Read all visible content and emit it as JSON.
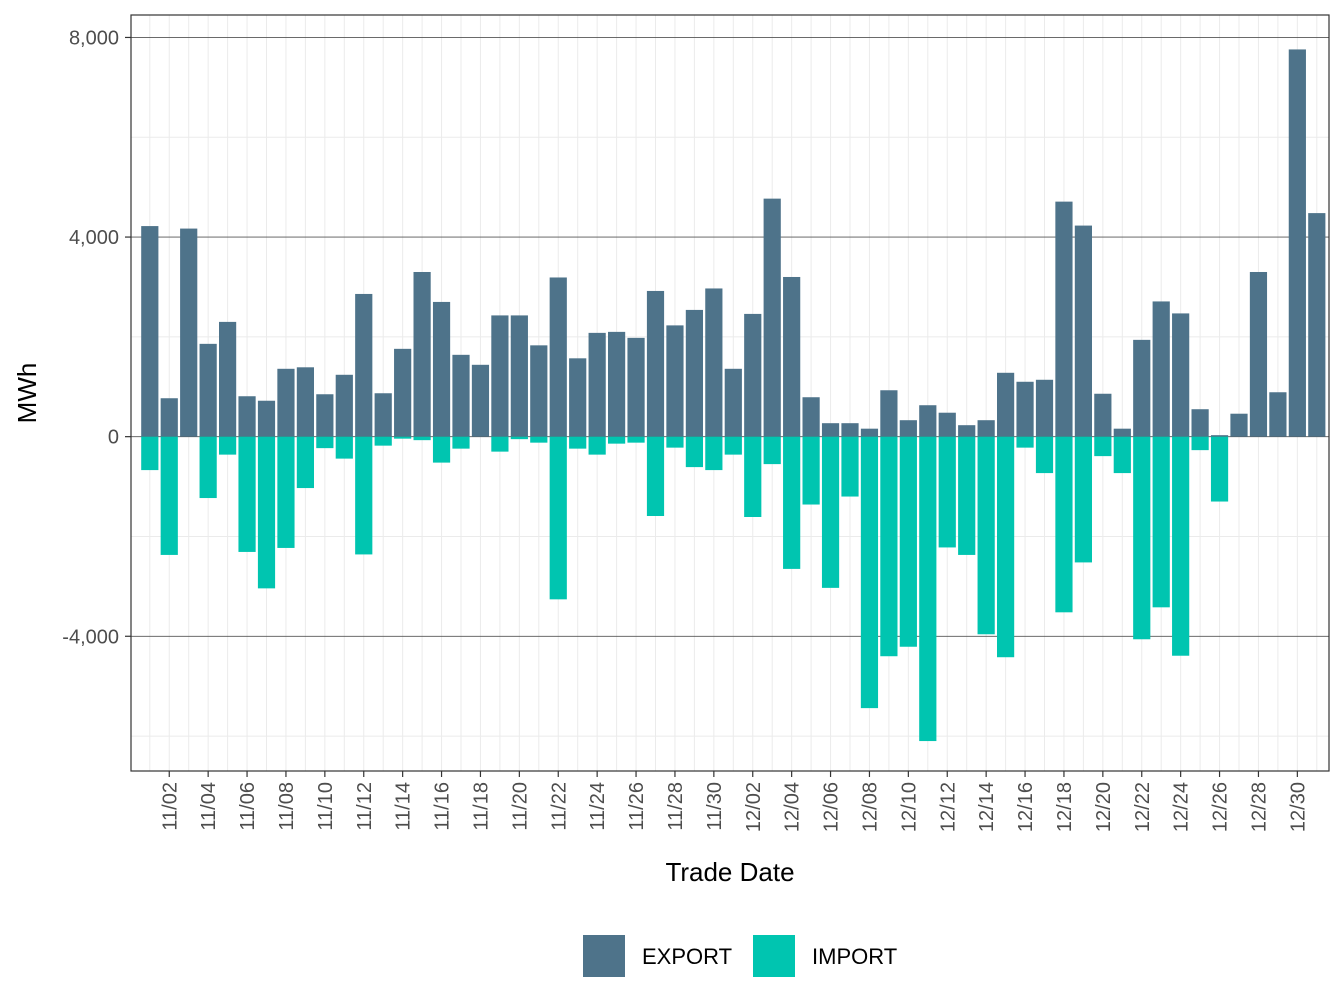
{
  "chart_data": {
    "type": "bar",
    "title": "",
    "xlabel": "Trade Date",
    "ylabel": "MWh",
    "ylim": [
      -6700,
      8450
    ],
    "y_ticks": [
      -4000,
      0,
      4000,
      8000
    ],
    "y_tick_labels": [
      "-4,000",
      "0",
      "4,000",
      "8,000"
    ],
    "grid": true,
    "legend_position": "bottom",
    "x_tick_labels": [
      "11/02",
      "11/04",
      "11/06",
      "11/08",
      "11/10",
      "11/12",
      "11/14",
      "11/16",
      "11/18",
      "11/20",
      "11/22",
      "11/24",
      "11/26",
      "11/28",
      "11/30",
      "12/02",
      "12/04",
      "12/06",
      "12/08",
      "12/10",
      "12/12",
      "12/14",
      "12/16",
      "12/18",
      "12/20",
      "12/22",
      "12/24",
      "12/26",
      "12/28",
      "12/30"
    ],
    "categories": [
      "11/01",
      "11/02",
      "11/03",
      "11/04",
      "11/05",
      "11/06",
      "11/07",
      "11/08",
      "11/09",
      "11/10",
      "11/11",
      "11/12",
      "11/13",
      "11/14",
      "11/15",
      "11/16",
      "11/17",
      "11/18",
      "11/19",
      "11/20",
      "11/21",
      "11/22",
      "11/23",
      "11/24",
      "11/25",
      "11/26",
      "11/27",
      "11/28",
      "11/29",
      "11/30",
      "12/01",
      "12/02",
      "12/03",
      "12/04",
      "12/05",
      "12/06",
      "12/07",
      "12/08",
      "12/09",
      "12/10",
      "12/11",
      "12/12",
      "12/13",
      "12/14",
      "12/15",
      "12/16",
      "12/17",
      "12/18",
      "12/19",
      "12/20",
      "12/21",
      "12/22",
      "12/23",
      "12/24",
      "12/25",
      "12/26",
      "12/27",
      "12/28",
      "12/29",
      "12/30",
      "12/31"
    ],
    "series": [
      {
        "name": "EXPORT",
        "color": "#4e738a",
        "values": [
          4220,
          770,
          4170,
          1860,
          2300,
          810,
          720,
          1360,
          1390,
          850,
          1240,
          2860,
          870,
          1760,
          3300,
          2700,
          1640,
          1440,
          2430,
          2430,
          1830,
          3190,
          1570,
          2080,
          2100,
          1980,
          2920,
          2230,
          2540,
          2970,
          1360,
          2460,
          4770,
          3200,
          790,
          270,
          270,
          160,
          930,
          330,
          630,
          480,
          230,
          330,
          1280,
          1100,
          1140,
          4710,
          4230,
          860,
          160,
          1940,
          2710,
          2470,
          550,
          30,
          460,
          3300,
          890,
          7760,
          4480
        ]
      },
      {
        "name": "IMPORT",
        "color": "#00c5b0",
        "values": [
          -670,
          -2370,
          0,
          -1230,
          -360,
          -2310,
          -3040,
          -2230,
          -1030,
          -230,
          -440,
          -2360,
          -180,
          -40,
          -70,
          -520,
          -240,
          0,
          -300,
          -50,
          -120,
          -3260,
          -240,
          -360,
          -140,
          -120,
          -1590,
          -220,
          -610,
          -670,
          -360,
          -1610,
          -550,
          -2650,
          -1360,
          -3030,
          -1200,
          -5440,
          -4400,
          -4210,
          -6100,
          -2220,
          -2370,
          -3960,
          -4420,
          -220,
          -730,
          -3520,
          -2520,
          -390,
          -730,
          -4060,
          -3420,
          -4390,
          -270,
          -1300,
          0,
          0,
          0,
          0,
          0
        ]
      }
    ]
  }
}
